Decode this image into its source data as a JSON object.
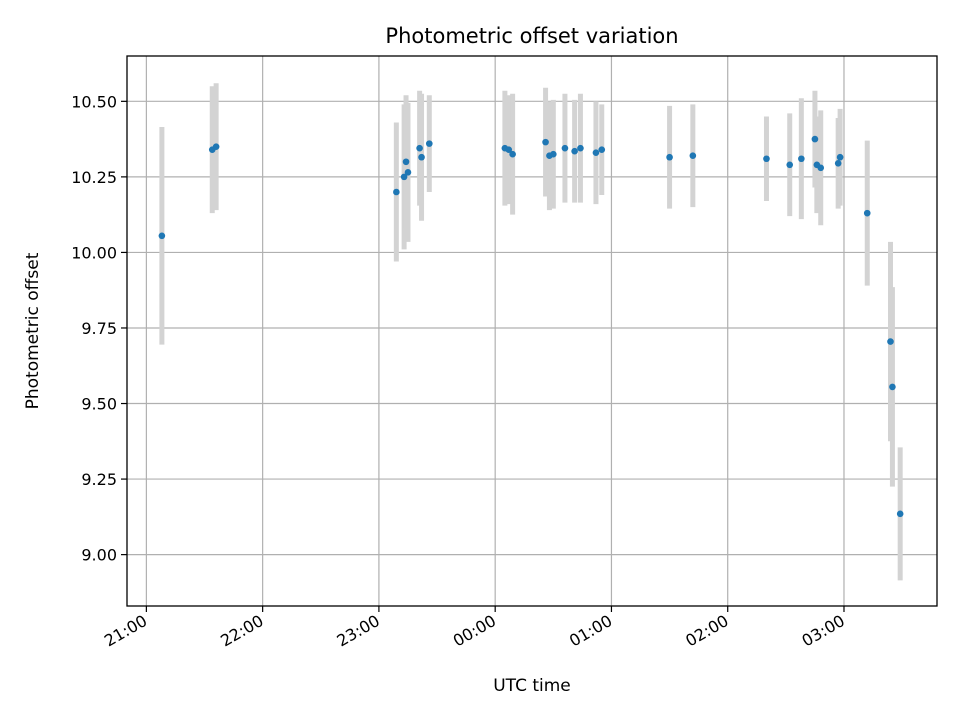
{
  "chart_data": {
    "type": "scatter",
    "title": "Photometric offset variation",
    "xlabel": "UTC time",
    "ylabel": "Photometric offset",
    "x_axis_kind": "time",
    "xlim": [
      "20:50",
      "03:48"
    ],
    "ylim": [
      8.83,
      10.65
    ],
    "grid": true,
    "x_ticks": [
      "21:00",
      "22:00",
      "23:00",
      "00:00",
      "01:00",
      "02:00",
      "03:00"
    ],
    "y_ticks": [
      "9.00",
      "9.25",
      "9.50",
      "9.75",
      "10.00",
      "10.25",
      "10.50"
    ],
    "colors": {
      "points": "#1f77b4",
      "error_bars": "#d3d3d3",
      "grid": "#b0b0b0"
    },
    "points": [
      {
        "time": "21:08",
        "y": 10.055,
        "err": 0.36
      },
      {
        "time": "21:34",
        "y": 10.34,
        "err": 0.21
      },
      {
        "time": "21:36",
        "y": 10.35,
        "err": 0.21
      },
      {
        "time": "23:09",
        "y": 10.2,
        "err": 0.23
      },
      {
        "time": "23:13",
        "y": 10.25,
        "err": 0.24
      },
      {
        "time": "23:14",
        "y": 10.3,
        "err": 0.22
      },
      {
        "time": "23:15",
        "y": 10.265,
        "err": 0.23
      },
      {
        "time": "23:21",
        "y": 10.345,
        "err": 0.19
      },
      {
        "time": "23:22",
        "y": 10.315,
        "err": 0.21
      },
      {
        "time": "23:26",
        "y": 10.36,
        "err": 0.16
      },
      {
        "time": "00:05",
        "y": 10.345,
        "err": 0.19
      },
      {
        "time": "00:07",
        "y": 10.34,
        "err": 0.18
      },
      {
        "time": "00:09",
        "y": 10.325,
        "err": 0.2
      },
      {
        "time": "00:26",
        "y": 10.365,
        "err": 0.18
      },
      {
        "time": "00:28",
        "y": 10.32,
        "err": 0.18
      },
      {
        "time": "00:30",
        "y": 10.325,
        "err": 0.18
      },
      {
        "time": "00:36",
        "y": 10.345,
        "err": 0.18
      },
      {
        "time": "00:41",
        "y": 10.335,
        "err": 0.17
      },
      {
        "time": "00:44",
        "y": 10.345,
        "err": 0.18
      },
      {
        "time": "00:52",
        "y": 10.33,
        "err": 0.17
      },
      {
        "time": "00:55",
        "y": 10.34,
        "err": 0.15
      },
      {
        "time": "01:30",
        "y": 10.315,
        "err": 0.17
      },
      {
        "time": "01:42",
        "y": 10.32,
        "err": 0.17
      },
      {
        "time": "02:20",
        "y": 10.31,
        "err": 0.14
      },
      {
        "time": "02:32",
        "y": 10.29,
        "err": 0.17
      },
      {
        "time": "02:38",
        "y": 10.31,
        "err": 0.2
      },
      {
        "time": "02:45",
        "y": 10.375,
        "err": 0.16
      },
      {
        "time": "02:46",
        "y": 10.29,
        "err": 0.16
      },
      {
        "time": "02:48",
        "y": 10.28,
        "err": 0.19
      },
      {
        "time": "02:57",
        "y": 10.295,
        "err": 0.15
      },
      {
        "time": "02:58",
        "y": 10.315,
        "err": 0.16
      },
      {
        "time": "03:12",
        "y": 10.13,
        "err": 0.24
      },
      {
        "time": "03:24",
        "y": 9.705,
        "err": 0.33
      },
      {
        "time": "03:25",
        "y": 9.555,
        "err": 0.33
      },
      {
        "time": "03:29",
        "y": 9.135,
        "err": 0.22
      }
    ]
  }
}
